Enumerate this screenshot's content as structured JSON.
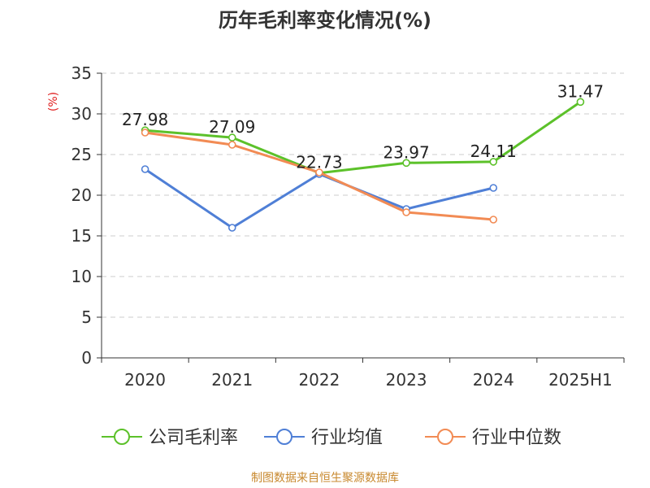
{
  "chart_data": {
    "type": "line",
    "title": "历年毛利率变化情况(%)",
    "ylabel": "(%)",
    "categories": [
      "2020",
      "2021",
      "2022",
      "2023",
      "2024",
      "2025H1"
    ],
    "ylim": [
      0,
      35
    ],
    "yticks": [
      0,
      5,
      10,
      15,
      20,
      25,
      30,
      35
    ],
    "grid": "horizontal-dashed",
    "legend_position": "bottom",
    "series": [
      {
        "name": "公司毛利率",
        "color": "#5cc12a",
        "values": [
          27.98,
          27.09,
          22.73,
          23.97,
          24.11,
          31.47
        ],
        "labels": [
          "27.98",
          "27.09",
          "22.73",
          "23.97",
          "24.11",
          "31.47"
        ]
      },
      {
        "name": "行业均值",
        "color": "#4f7fd6",
        "values": [
          23.2,
          16.0,
          22.6,
          18.3,
          20.9,
          null
        ]
      },
      {
        "name": "行业中位数",
        "color": "#f28b54",
        "values": [
          27.7,
          26.2,
          22.8,
          17.9,
          17.0,
          null
        ]
      }
    ]
  },
  "footer": "制图数据来自恒生聚源数据库"
}
